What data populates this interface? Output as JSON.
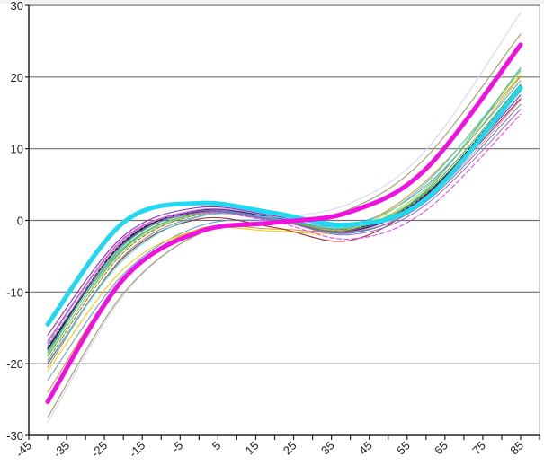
{
  "chart_data": {
    "type": "line",
    "title": "",
    "xlabel": "",
    "ylabel": "",
    "xlim": [
      -45,
      90
    ],
    "ylim": [
      -30,
      30
    ],
    "grid": {
      "horizontal": true,
      "vertical": false
    },
    "legend": null,
    "x_ticks": [
      -45,
      -35,
      -25,
      -15,
      -5,
      5,
      15,
      25,
      35,
      45,
      55,
      65,
      75,
      85
    ],
    "x_minor_step": 5,
    "y_ticks": [
      -30,
      -20,
      -10,
      0,
      10,
      20,
      30
    ],
    "x": [
      -40,
      -20,
      0,
      20,
      40,
      60,
      85
    ],
    "series": [
      {
        "name": "lavender",
        "color": "#d8d8f8",
        "width": 1.2,
        "dash": "",
        "values": [
          -28.2,
          -10.5,
          -1.8,
          0.2,
          2.4,
          9.8,
          29.0
        ]
      },
      {
        "name": "olive",
        "color": "#a8a070",
        "width": 1.2,
        "dash": "",
        "values": [
          -27.5,
          -10.2,
          -1.9,
          -0.4,
          1.6,
          8.8,
          26.0
        ]
      },
      {
        "name": "blue-light",
        "color": "#5a9ad8",
        "width": 1,
        "dash": "",
        "values": [
          -22.3,
          -7.5,
          -0.8,
          0.0,
          -0.6,
          4.8,
          19.5
        ]
      },
      {
        "name": "orange",
        "color": "#e08a20",
        "width": 1,
        "dash": "",
        "values": [
          -24.0,
          -8.0,
          -1.2,
          -1.2,
          -1.0,
          5.5,
          20.2
        ]
      },
      {
        "name": "yellow",
        "color": "#f0d020",
        "width": 1.2,
        "dash": "",
        "values": [
          -21.0,
          -6.8,
          -1.3,
          -1.5,
          -1.3,
          5.2,
          20.8
        ]
      },
      {
        "name": "dark-red",
        "color": "#a03030",
        "width": 1.1,
        "dash": "",
        "values": [
          -20.0,
          -5.2,
          0.2,
          -1.0,
          -2.8,
          3.2,
          17.0
        ]
      },
      {
        "name": "gray",
        "color": "#909090",
        "width": 1,
        "dash": "",
        "values": [
          -20.5,
          -5.0,
          0.6,
          0.2,
          -1.5,
          3.8,
          18.0
        ]
      },
      {
        "name": "green",
        "color": "#40b040",
        "width": 1,
        "dash": "",
        "values": [
          -19.0,
          -4.0,
          1.0,
          0.0,
          -1.5,
          4.0,
          19.0
        ]
      },
      {
        "name": "teal",
        "color": "#30a0a0",
        "width": 1,
        "dash": "",
        "values": [
          -18.5,
          -3.5,
          1.2,
          0.3,
          -1.8,
          3.0,
          18.2
        ]
      },
      {
        "name": "navy",
        "color": "#202080",
        "width": 1.3,
        "dash": "",
        "values": [
          -18.0,
          -3.2,
          1.4,
          0.4,
          -1.5,
          3.5,
          18.5
        ]
      },
      {
        "name": "black",
        "color": "#202020",
        "width": 1.3,
        "dash": "4,2",
        "values": [
          -17.8,
          -3.0,
          1.2,
          0.2,
          -1.2,
          3.6,
          18.8
        ]
      },
      {
        "name": "purple",
        "color": "#8030c0",
        "width": 1.1,
        "dash": "",
        "values": [
          -16.0,
          -2.2,
          1.8,
          0.6,
          -1.3,
          3.4,
          17.5
        ]
      },
      {
        "name": "pink",
        "color": "#f080c0",
        "width": 1,
        "dash": "",
        "values": [
          -17.0,
          -2.8,
          1.5,
          0.5,
          -1.6,
          2.8,
          16.8
        ]
      },
      {
        "name": "brown",
        "color": "#907040",
        "width": 1,
        "dash": "4,2",
        "values": [
          -19.5,
          -4.5,
          0.8,
          0.0,
          -1.4,
          3.8,
          18.0
        ]
      },
      {
        "name": "lime",
        "color": "#a0d040",
        "width": 1,
        "dash": "",
        "values": [
          -18.8,
          -4.2,
          0.9,
          0.2,
          -1.2,
          4.5,
          20.0
        ]
      },
      {
        "name": "cyan-thin",
        "color": "#40d8e8",
        "width": 1,
        "dash": "",
        "values": [
          -19.8,
          -5.5,
          0.5,
          0.4,
          -0.8,
          5.2,
          21.0
        ]
      },
      {
        "name": "sea-green",
        "color": "#50c090",
        "width": 1.2,
        "dash": "",
        "values": [
          -18.2,
          -3.8,
          1.0,
          0.2,
          -1.0,
          4.2,
          21.3
        ]
      },
      {
        "name": "steel",
        "color": "#6080a0",
        "width": 1,
        "dash": "",
        "values": [
          -17.5,
          -3.3,
          1.1,
          0.0,
          -1.7,
          2.6,
          16.2
        ]
      },
      {
        "name": "violet",
        "color": "#a060e0",
        "width": 1,
        "dash": "",
        "values": [
          -16.8,
          -2.6,
          1.3,
          0.1,
          -2.0,
          2.2,
          15.5
        ]
      },
      {
        "name": "magenta-dashed",
        "color": "#f050f0",
        "width": 1.2,
        "dash": "5,3",
        "values": [
          -17.2,
          -2.5,
          1.0,
          -0.2,
          -2.6,
          1.4,
          14.8
        ]
      },
      {
        "name": "cyan-thick",
        "color": "#20d8f0",
        "width": 5,
        "dash": "",
        "values": [
          -14.5,
          -0.3,
          2.4,
          1.0,
          -0.6,
          3.0,
          18.5
        ]
      },
      {
        "name": "magenta-thick",
        "color": "#f010e0",
        "width": 5,
        "dash": "",
        "values": [
          -25.3,
          -8.2,
          -1.6,
          -0.3,
          1.2,
          7.2,
          24.5
        ]
      }
    ]
  }
}
